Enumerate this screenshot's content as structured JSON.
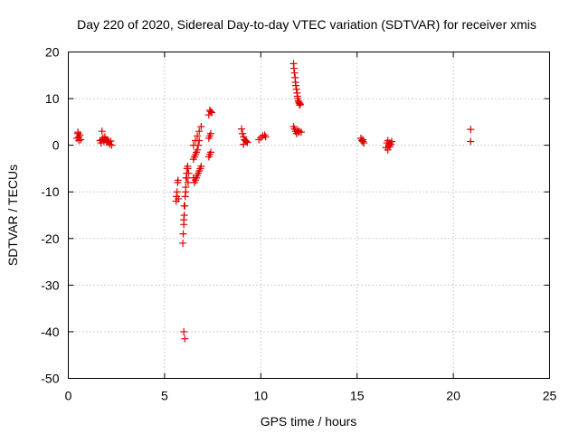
{
  "chart_data": {
    "type": "scatter",
    "title": "Day 220 of 2020, Sidereal Day-to-day VTEC variation (SDTVAR) for receiver xmis",
    "xlabel": "GPS time / hours",
    "ylabel": "SDTVAR / TECUs",
    "xlim": [
      0,
      25
    ],
    "ylim": [
      -50,
      20
    ],
    "xticks": [
      0,
      5,
      10,
      15,
      20,
      25
    ],
    "yticks": [
      -50,
      -40,
      -30,
      -20,
      -10,
      0,
      10,
      20
    ],
    "grid": true,
    "marker": "+",
    "color": "#e00000",
    "series": [
      {
        "name": "SDTVAR",
        "x": [
          0.45,
          0.5,
          0.55,
          0.6,
          0.65,
          0.5,
          0.55,
          1.65,
          1.7,
          1.75,
          1.8,
          1.85,
          1.9,
          1.95,
          2.0,
          2.05,
          2.1,
          2.15,
          2.2,
          2.25,
          1.75,
          1.9,
          5.6,
          5.62,
          5.65,
          5.68,
          5.7,
          5.72,
          5.95,
          5.97,
          6.0,
          6.02,
          6.05,
          6.07,
          6.1,
          6.12,
          6.15,
          6.17,
          6.2,
          6.22,
          6.25,
          6.0,
          6.05,
          6.0,
          6.02,
          6.1,
          6.15,
          6.2,
          6.55,
          6.6,
          6.65,
          6.7,
          6.75,
          6.8,
          6.85,
          6.9,
          6.5,
          6.55,
          6.6,
          6.65,
          6.7,
          6.75,
          6.8,
          6.5,
          6.6,
          6.7,
          6.8,
          6.9,
          6.5,
          7.3,
          7.35,
          7.4,
          7.45,
          7.3,
          7.35,
          7.4,
          7.3,
          7.35,
          7.4,
          9.0,
          9.05,
          9.1,
          9.15,
          9.2,
          9.25,
          9.3,
          9.1,
          9.9,
          10.0,
          10.1,
          10.2,
          10.25,
          11.7,
          11.72,
          11.75,
          11.78,
          11.8,
          11.82,
          11.85,
          11.88,
          11.9,
          11.92,
          11.95,
          11.98,
          12.0,
          12.02,
          12.05,
          11.7,
          11.75,
          11.8,
          11.85,
          11.9,
          11.95,
          12.0,
          12.1,
          15.2,
          15.25,
          15.3,
          15.35,
          15.3,
          16.5,
          16.55,
          16.6,
          16.65,
          16.7,
          16.75,
          16.8,
          16.6,
          16.7,
          20.9,
          20.9
        ],
        "y": [
          1.5,
          2.5,
          1.8,
          2.2,
          1.2,
          2.8,
          1.0,
          1.0,
          0.5,
          3.0,
          1.5,
          0.8,
          1.8,
          1.2,
          0.6,
          1.0,
          0.7,
          0.2,
          0.9,
          0.0,
          1.2,
          1.5,
          -12,
          -11,
          -10,
          -8,
          -7.5,
          -11.5,
          -21,
          -19,
          -17,
          -15,
          -13,
          -11,
          -9,
          -7,
          -6,
          -5,
          -4.5,
          -8,
          -6,
          -40,
          -41.5,
          -16,
          -13,
          -10,
          -7,
          -5,
          -8,
          -7.5,
          -7,
          -6.5,
          -6,
          -5.5,
          -5,
          -4.5,
          -3,
          -2.5,
          -2,
          -1.5,
          -1,
          0,
          1,
          0,
          1,
          2,
          3,
          4,
          -7,
          6.5,
          7.5,
          7.2,
          7.0,
          1.5,
          2.0,
          2.5,
          -2.5,
          -2.0,
          -1.5,
          3.5,
          2.5,
          1.8,
          1.2,
          1.0,
          0.8,
          0.6,
          0.2,
          1.2,
          1.6,
          2.0,
          2.2,
          1.8,
          17.5,
          16.5,
          15.5,
          14.5,
          13.5,
          12.8,
          12,
          11.2,
          10.5,
          10,
          9.5,
          9.2,
          9,
          8.6,
          8.8,
          4.0,
          3.5,
          3.0,
          2.5,
          3.2,
          2.8,
          3.0,
          2.8,
          1.5,
          1.0,
          0.8,
          0.5,
          1.2,
          -0.5,
          0.5,
          1.0,
          0.0,
          -0.3,
          0.2,
          0.8,
          -1.0,
          0.5,
          3.4,
          0.8
        ]
      }
    ]
  }
}
